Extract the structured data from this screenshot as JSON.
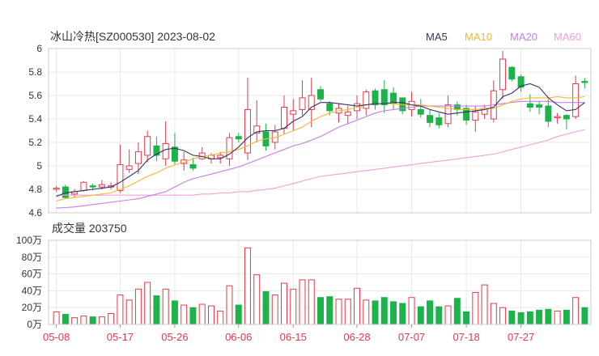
{
  "title": "冰山冷热[SZ000530] 2023-08-02",
  "legend": [
    {
      "label": "MA5",
      "color": "#333366"
    },
    {
      "label": "MA10",
      "color": "#f5b82e"
    },
    {
      "label": "MA20",
      "color": "#c77de8"
    },
    {
      "label": "MA60",
      "color": "#f0a0d8"
    }
  ],
  "colors": {
    "up": "#e23b4a",
    "down": "#1db24a",
    "grid": "#e8e8e8",
    "axis_text": "#333333",
    "date_text": "#e23b4a"
  },
  "volume_label": "成交量 203750",
  "chart_data": [
    {
      "type": "candlestick",
      "price_axis": {
        "min": 4.6,
        "max": 6.0,
        "ticks": [
          "6",
          "5.8",
          "5.6",
          "5.4",
          "5.2",
          "5",
          "4.8",
          "4.6"
        ]
      },
      "x_ticks": [
        {
          "index": 0,
          "label": "05-08"
        },
        {
          "index": 7,
          "label": "05-17"
        },
        {
          "index": 13,
          "label": "05-26"
        },
        {
          "index": 20,
          "label": "06-06"
        },
        {
          "index": 26,
          "label": "06-15"
        },
        {
          "index": 33,
          "label": "06-28"
        },
        {
          "index": 39,
          "label": "07-07"
        },
        {
          "index": 45,
          "label": "07-18"
        },
        {
          "index": 51,
          "label": "07-27"
        }
      ],
      "ohlc": [
        [
          4.8,
          4.81,
          4.78,
          4.83
        ],
        [
          4.82,
          4.73,
          4.72,
          4.84
        ],
        [
          4.76,
          4.78,
          4.73,
          4.8
        ],
        [
          4.79,
          4.86,
          4.78,
          4.87
        ],
        [
          4.83,
          4.82,
          4.79,
          4.85
        ],
        [
          4.82,
          4.84,
          4.8,
          4.88
        ],
        [
          4.82,
          4.83,
          4.8,
          4.86
        ],
        [
          4.79,
          5.01,
          4.77,
          5.18
        ],
        [
          4.97,
          5.0,
          4.94,
          5.14
        ],
        [
          5.02,
          5.12,
          4.93,
          5.2
        ],
        [
          5.09,
          5.25,
          5.03,
          5.3
        ],
        [
          5.17,
          5.09,
          5.04,
          5.25
        ],
        [
          5.06,
          5.19,
          5.0,
          5.38
        ],
        [
          5.16,
          5.04,
          5.01,
          5.28
        ],
        [
          5.02,
          5.05,
          4.96,
          5.12
        ],
        [
          5.01,
          4.98,
          4.96,
          5.07
        ],
        [
          5.06,
          5.11,
          5.05,
          5.16
        ],
        [
          5.06,
          5.09,
          5.02,
          5.11
        ],
        [
          5.07,
          5.09,
          5.02,
          5.12
        ],
        [
          5.06,
          5.24,
          5.0,
          5.28
        ],
        [
          5.25,
          5.23,
          5.2,
          5.28
        ],
        [
          5.11,
          5.48,
          5.05,
          5.75
        ],
        [
          5.28,
          5.34,
          5.2,
          5.56
        ],
        [
          5.29,
          5.17,
          5.13,
          5.36
        ],
        [
          5.2,
          5.29,
          5.14,
          5.35
        ],
        [
          5.32,
          5.5,
          5.27,
          5.6
        ],
        [
          5.44,
          5.47,
          5.3,
          5.57
        ],
        [
          5.48,
          5.58,
          5.43,
          5.73
        ],
        [
          5.48,
          5.6,
          5.33,
          5.75
        ],
        [
          5.65,
          5.57,
          5.55,
          5.68
        ],
        [
          5.53,
          5.47,
          5.43,
          5.55
        ],
        [
          5.45,
          5.49,
          5.37,
          5.53
        ],
        [
          5.43,
          5.46,
          5.36,
          5.51
        ],
        [
          5.47,
          5.53,
          5.4,
          5.6
        ],
        [
          5.49,
          5.63,
          5.43,
          5.65
        ],
        [
          5.64,
          5.52,
          5.48,
          5.66
        ],
        [
          5.65,
          5.52,
          5.45,
          5.73
        ],
        [
          5.62,
          5.53,
          5.48,
          5.67
        ],
        [
          5.58,
          5.47,
          5.44,
          5.58
        ],
        [
          5.48,
          5.55,
          5.42,
          5.63
        ],
        [
          5.48,
          5.44,
          5.41,
          5.57
        ],
        [
          5.43,
          5.37,
          5.33,
          5.48
        ],
        [
          5.41,
          5.35,
          5.32,
          5.45
        ],
        [
          5.36,
          5.52,
          5.33,
          5.6
        ],
        [
          5.52,
          5.48,
          5.43,
          5.55
        ],
        [
          5.49,
          5.39,
          5.35,
          5.52
        ],
        [
          5.39,
          5.46,
          5.29,
          5.51
        ],
        [
          5.44,
          5.49,
          5.4,
          5.52
        ],
        [
          5.4,
          5.64,
          5.37,
          5.73
        ],
        [
          5.65,
          5.91,
          5.57,
          5.98
        ],
        [
          5.84,
          5.74,
          5.72,
          5.85
        ],
        [
          5.76,
          5.67,
          5.63,
          5.78
        ],
        [
          5.53,
          5.5,
          5.46,
          5.61
        ],
        [
          5.52,
          5.5,
          5.44,
          5.55
        ],
        [
          5.51,
          5.38,
          5.33,
          5.57
        ],
        [
          5.41,
          5.42,
          5.36,
          5.45
        ],
        [
          5.43,
          5.4,
          5.31,
          5.44
        ],
        [
          5.42,
          5.7,
          5.4,
          5.77
        ],
        [
          5.72,
          5.71,
          5.66,
          5.75
        ]
      ],
      "ma5": [
        4.74,
        4.77,
        4.78,
        4.79,
        4.8,
        4.81,
        4.82,
        4.86,
        4.91,
        4.96,
        5.05,
        5.1,
        5.14,
        5.15,
        5.13,
        5.09,
        5.08,
        5.06,
        5.06,
        5.1,
        5.16,
        5.24,
        5.29,
        5.3,
        5.3,
        5.32,
        5.38,
        5.42,
        5.5,
        5.54,
        5.54,
        5.53,
        5.52,
        5.51,
        5.52,
        5.53,
        5.53,
        5.54,
        5.54,
        5.52,
        5.51,
        5.48,
        5.46,
        5.44,
        5.45,
        5.46,
        5.47,
        5.48,
        5.5,
        5.59,
        5.62,
        5.68,
        5.7,
        5.67,
        5.58,
        5.52,
        5.47,
        5.48,
        5.54
      ],
      "ma10": [
        4.7,
        4.72,
        4.73,
        4.74,
        4.75,
        4.76,
        4.77,
        4.8,
        4.83,
        4.87,
        4.91,
        4.94,
        4.98,
        5.01,
        5.03,
        5.06,
        5.08,
        5.09,
        5.11,
        5.12,
        5.14,
        5.17,
        5.21,
        5.23,
        5.24,
        5.27,
        5.3,
        5.33,
        5.38,
        5.42,
        5.45,
        5.47,
        5.48,
        5.5,
        5.52,
        5.53,
        5.53,
        5.53,
        5.52,
        5.52,
        5.52,
        5.51,
        5.5,
        5.49,
        5.48,
        5.48,
        5.48,
        5.49,
        5.49,
        5.52,
        5.55,
        5.57,
        5.58,
        5.58,
        5.58,
        5.59,
        5.58,
        5.58,
        5.59
      ],
      "ma20": [
        4.64,
        4.645,
        4.65,
        4.66,
        4.67,
        4.68,
        4.69,
        4.7,
        4.71,
        4.72,
        4.74,
        4.76,
        4.78,
        4.82,
        4.86,
        4.89,
        4.91,
        4.93,
        4.95,
        4.97,
        4.99,
        5.02,
        5.05,
        5.08,
        5.11,
        5.14,
        5.17,
        5.19,
        5.22,
        5.25,
        5.29,
        5.33,
        5.36,
        5.39,
        5.42,
        5.45,
        5.47,
        5.48,
        5.49,
        5.5,
        5.51,
        5.51,
        5.51,
        5.51,
        5.51,
        5.51,
        5.51,
        5.51,
        5.52,
        5.53,
        5.54,
        5.55,
        5.55,
        5.55,
        5.55,
        5.54,
        5.54,
        5.54,
        5.54
      ],
      "ma60": [
        4.75,
        4.75,
        4.75,
        4.75,
        4.75,
        4.75,
        4.75,
        4.75,
        4.75,
        4.75,
        4.75,
        4.75,
        4.75,
        4.75,
        4.75,
        4.75,
        4.76,
        4.76,
        4.77,
        4.77,
        4.78,
        4.78,
        4.79,
        4.8,
        4.81,
        4.83,
        4.85,
        4.87,
        4.89,
        4.91,
        4.92,
        4.93,
        4.94,
        4.95,
        4.96,
        4.97,
        4.98,
        4.99,
        5.0,
        5.01,
        5.02,
        5.03,
        5.04,
        5.05,
        5.06,
        5.07,
        5.08,
        5.09,
        5.1,
        5.12,
        5.14,
        5.16,
        5.18,
        5.2,
        5.22,
        5.25,
        5.27,
        5.29,
        5.31
      ]
    },
    {
      "type": "bar",
      "title": "成交量 203750",
      "y_axis": {
        "min": 0,
        "max": 100,
        "ticks": [
          "100万",
          "80万",
          "60万",
          "40万",
          "20万",
          "0万"
        ]
      },
      "unit": "万",
      "values": [
        15,
        12,
        8,
        10,
        9,
        9,
        13,
        35,
        29,
        42,
        50,
        34,
        42,
        28,
        23,
        20,
        24,
        22,
        16,
        46,
        23,
        91,
        59,
        39,
        35,
        49,
        42,
        53,
        53,
        32,
        33,
        30,
        30,
        43,
        29,
        28,
        32,
        27,
        25,
        32,
        21,
        28,
        21,
        22,
        31,
        15,
        38,
        47,
        25,
        20,
        16,
        14,
        15,
        17,
        18,
        16,
        17,
        32,
        20
      ]
    }
  ]
}
